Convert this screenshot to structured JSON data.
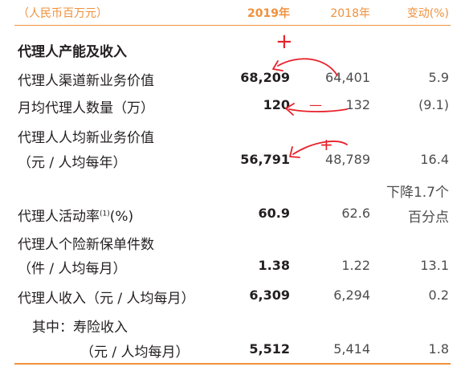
{
  "header": {
    "unit": "（人民币百万元）",
    "col_2019": "2019年",
    "col_2018": "2018年",
    "col_change": "变动(%)"
  },
  "section_title": "代理人产能及收入",
  "rows": [
    {
      "label": "代理人渠道新业务价值",
      "v2019": "68,209",
      "v2018": "64,401",
      "change": "5.9"
    },
    {
      "label": "月均代理人数量（万）",
      "v2019": "120",
      "v2018": "132",
      "change": "(9.1)"
    },
    {
      "label_l1": "代理人人均新业务价值",
      "label_l2": "（元 / 人均每年）",
      "v2019": "56,791",
      "v2018": "48,789",
      "change": "16.4"
    },
    {
      "label": "代理人活动率",
      "label_sup": "(1)",
      "label_suffix": "(%)",
      "v2019": "60.9",
      "v2018": "62.6",
      "change_l1": "下降1.7个",
      "change_l2": "百分点"
    },
    {
      "label_l1": "代理人个险新保单件数",
      "label_l2": "（件 / 人均每月）",
      "v2019": "1.38",
      "v2018": "1.22",
      "change": "13.1"
    },
    {
      "label": "代理人收入（元 / 人均每月）",
      "v2019": "6,309",
      "v2018": "6,294",
      "change": "0.2"
    },
    {
      "label_l1": "其中：寿险收入",
      "label_l2": "（元 / 人均每月）",
      "v2019": "5,512",
      "v2018": "5,414",
      "change": "1.8"
    }
  ],
  "annotations": {
    "plus": "+",
    "minus": "—",
    "ink_color": "#e8202a"
  }
}
